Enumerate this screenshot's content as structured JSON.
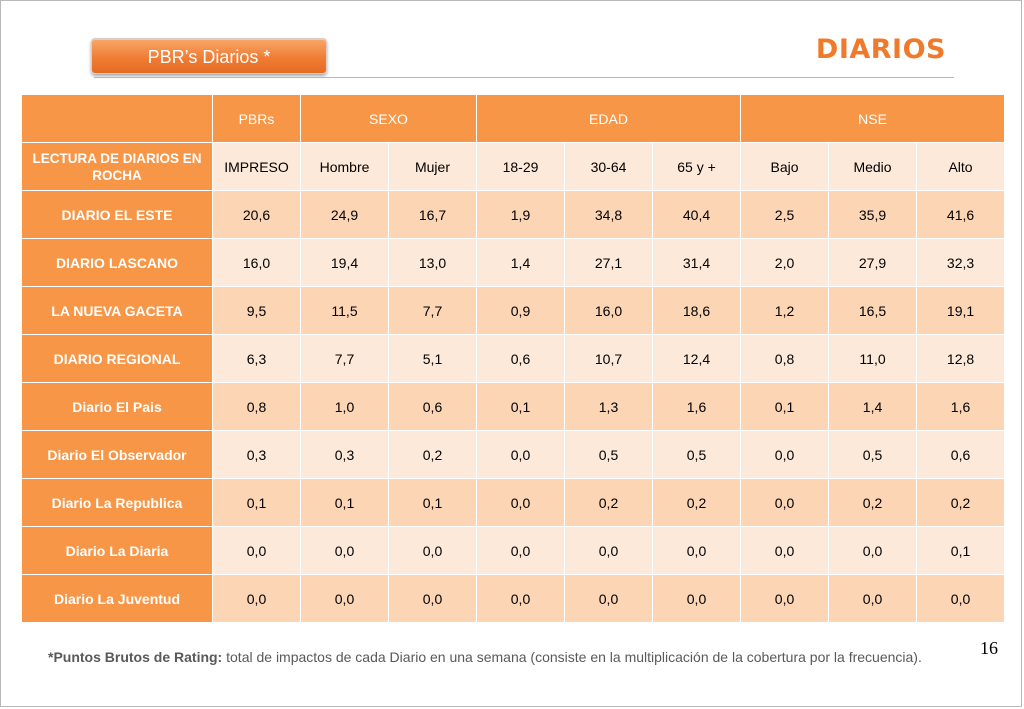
{
  "header": {
    "tag_label": "PBR’s Diarios  *",
    "title": "DIARIOS"
  },
  "table": {
    "group_headers": [
      "PBRs",
      "SEXO",
      "EDAD",
      "NSE"
    ],
    "row_header_title": "LECTURA DE DIARIOS EN ROCHA",
    "sub_headers": [
      "IMPRESO",
      "Hombre",
      "Mujer",
      "18-29",
      "30-64",
      "65 y +",
      "Bajo",
      "Medio",
      "Alto"
    ],
    "rows": [
      {
        "name": "DIARIO EL ESTE",
        "values": [
          "20,6",
          "24,9",
          "16,7",
          "1,9",
          "34,8",
          "40,4",
          "2,5",
          "35,9",
          "41,6"
        ]
      },
      {
        "name": "DIARIO LASCANO",
        "values": [
          "16,0",
          "19,4",
          "13,0",
          "1,4",
          "27,1",
          "31,4",
          "2,0",
          "27,9",
          "32,3"
        ]
      },
      {
        "name": "LA NUEVA GACETA",
        "values": [
          "9,5",
          "11,5",
          "7,7",
          "0,9",
          "16,0",
          "18,6",
          "1,2",
          "16,5",
          "19,1"
        ]
      },
      {
        "name": "DIARIO REGIONAL",
        "values": [
          "6,3",
          "7,7",
          "5,1",
          "0,6",
          "10,7",
          "12,4",
          "0,8",
          "11,0",
          "12,8"
        ]
      },
      {
        "name": "Diario El Pais",
        "values": [
          "0,8",
          "1,0",
          "0,6",
          "0,1",
          "1,3",
          "1,6",
          "0,1",
          "1,4",
          "1,6"
        ]
      },
      {
        "name": "Diario El Observador",
        "values": [
          "0,3",
          "0,3",
          "0,2",
          "0,0",
          "0,5",
          "0,5",
          "0,0",
          "0,5",
          "0,6"
        ]
      },
      {
        "name": "Diario La Republica",
        "values": [
          "0,1",
          "0,1",
          "0,1",
          "0,0",
          "0,2",
          "0,2",
          "0,0",
          "0,2",
          "0,2"
        ]
      },
      {
        "name": "Diario La Diaria",
        "values": [
          "0,0",
          "0,0",
          "0,0",
          "0,0",
          "0,0",
          "0,0",
          "0,0",
          "0,0",
          "0,1"
        ]
      },
      {
        "name": "Diario La Juventud",
        "values": [
          "0,0",
          "0,0",
          "0,0",
          "0,0",
          "0,0",
          "0,0",
          "0,0",
          "0,0",
          "0,0"
        ]
      }
    ]
  },
  "footer": {
    "page_number": "16",
    "footnote_term": "*Puntos Brutos de Rating:",
    "footnote_text": " total de impactos de cada Diario en una semana (consiste en la multiplicación de la cobertura por la frecuencia)."
  },
  "colors": {
    "accent": "#f79646",
    "row_light": "#fde9d9",
    "row_dark": "#fcd5b5",
    "title": "#f07a2b"
  }
}
